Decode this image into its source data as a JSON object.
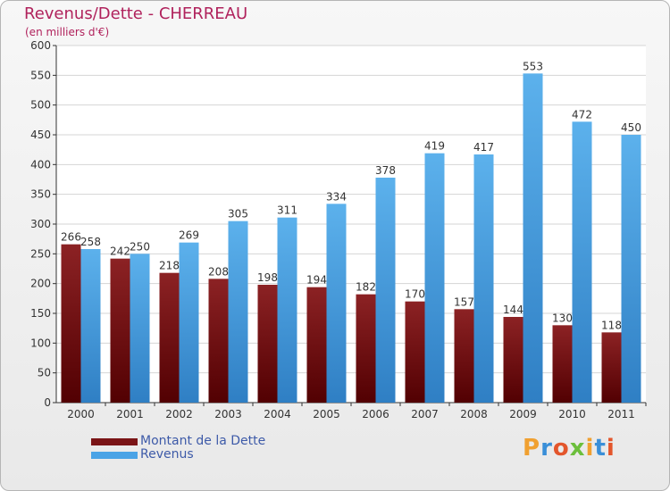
{
  "chart_data": {
    "type": "bar",
    "title": "Revenus/Dette - CHERREAU",
    "subtitle": "(en milliers d'€)",
    "categories": [
      "2000",
      "2001",
      "2002",
      "2003",
      "2004",
      "2005",
      "2006",
      "2007",
      "2008",
      "2009",
      "2010",
      "2011"
    ],
    "series": [
      {
        "name": "Montant de la Dette",
        "color": "#7a1416",
        "values": [
          266,
          242,
          218,
          208,
          198,
          194,
          182,
          170,
          157,
          144,
          130,
          118
        ]
      },
      {
        "name": "Revenus",
        "color": "#4aa3e6",
        "values": [
          258,
          250,
          269,
          305,
          311,
          334,
          378,
          419,
          417,
          553,
          472,
          450
        ]
      }
    ],
    "ylim": [
      0,
      600
    ],
    "yticks": [
      0,
      50,
      100,
      150,
      200,
      250,
      300,
      350,
      400,
      450,
      500,
      550,
      600
    ],
    "grid": true,
    "legend": "bottom-left"
  },
  "logo": {
    "text": "Proxiti"
  }
}
